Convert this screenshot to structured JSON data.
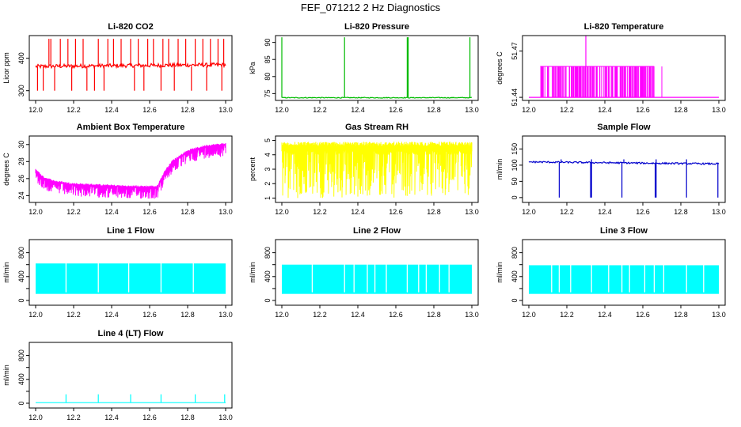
{
  "figure": {
    "title": "FEF_071212  2 Hz Diagnostics"
  },
  "chart_data": [
    {
      "id": "co2",
      "type": "line",
      "title": "Li-820 CO2",
      "ylabel": "Licor ppm",
      "color": "#ff0000",
      "xlim": [
        12.0,
        13.0
      ],
      "ylim": [
        270,
        470
      ],
      "yticks": [
        300,
        400
      ],
      "xticks": [
        "12.0",
        "12.2",
        "12.4",
        "12.6",
        "12.8",
        "13.0"
      ],
      "baseline": 375,
      "noise": 6,
      "base_note": "baseline drifts 375 to 380 ppm",
      "spikes_up": [
        12.07,
        12.08,
        12.13,
        12.17,
        12.21,
        12.25,
        12.33,
        12.38,
        12.41,
        12.45,
        12.5,
        12.54,
        12.59,
        12.62,
        12.67,
        12.7,
        12.75,
        12.79,
        12.84,
        12.88,
        12.92,
        12.96,
        12.99
      ],
      "spike_up_to": 460,
      "spikes_down": [
        12.01,
        12.04,
        12.1,
        12.19,
        12.27,
        12.31,
        12.36,
        12.52,
        12.57,
        12.66,
        12.73,
        12.82,
        12.9,
        12.98
      ],
      "spike_down_to": 300
    },
    {
      "id": "pressure",
      "type": "line",
      "title": "Li-820 Pressure",
      "ylabel": "kPa",
      "color": "#00bb00",
      "xlim": [
        12.0,
        13.0
      ],
      "ylim": [
        73,
        92
      ],
      "yticks": [
        75,
        80,
        85,
        90
      ],
      "xticks": [
        "12.0",
        "12.2",
        "12.4",
        "12.6",
        "12.8",
        "13.0"
      ],
      "baseline": 73.8,
      "noise": 0.12,
      "spikes_up": [
        12.0,
        12.33,
        12.66,
        12.665,
        12.99
      ],
      "spike_up_to": 91.5,
      "spikes_down": [],
      "spike_down_to": 73.8
    },
    {
      "id": "temperature",
      "type": "line",
      "title": "Li-820 Temperature",
      "ylabel": "degrees C",
      "color": "#ff00ff",
      "xlim": [
        12.0,
        13.0
      ],
      "ylim": [
        51.438,
        51.48
      ],
      "yticks": [
        51.44,
        51.47
      ],
      "xticks": [
        "12.0",
        "12.2",
        "12.4",
        "12.6",
        "12.8",
        "13.0"
      ],
      "baseline": 51.44,
      "noise": 0,
      "high": 51.46,
      "band_start": 12.06,
      "band_end": 12.66,
      "spikes_up": [
        12.3
      ],
      "spike_up_to": 51.48,
      "extra_lines": [
        12.7
      ],
      "spikes_down": [],
      "spike_down_to": 51.44
    },
    {
      "id": "boxtemp",
      "type": "line",
      "title": "Ambient Box Temperature",
      "ylabel": "degrees C",
      "color": "#ff00ff",
      "xlim": [
        12.0,
        13.0
      ],
      "ylim": [
        23.2,
        31
      ],
      "yticks": [
        24,
        26,
        28,
        30
      ],
      "xticks": [
        "12.0",
        "12.2",
        "12.4",
        "12.6",
        "12.8",
        "13.0"
      ],
      "profile": [
        [
          12.0,
          27.0
        ],
        [
          12.04,
          26.1
        ],
        [
          12.1,
          25.6
        ],
        [
          12.2,
          25.3
        ],
        [
          12.4,
          25.1
        ],
        [
          12.5,
          25.0
        ],
        [
          12.64,
          25.0
        ],
        [
          12.68,
          26.8
        ],
        [
          12.72,
          28.0
        ],
        [
          12.8,
          29.2
        ],
        [
          12.9,
          29.8
        ],
        [
          13.0,
          30.0
        ]
      ],
      "band_below": 1.4,
      "spikes_up": [],
      "spike_up_to": 0,
      "spikes_down": [],
      "spike_down_to": 0
    },
    {
      "id": "rh",
      "type": "line",
      "title": "Gas Stream RH",
      "ylabel": "percent",
      "color": "#ffff00",
      "xlim": [
        12.0,
        13.0
      ],
      "ylim": [
        0.7,
        5.3
      ],
      "yticks": [
        1,
        2,
        3,
        4,
        5
      ],
      "xticks": [
        "12.0",
        "12.2",
        "12.4",
        "12.6",
        "12.8",
        "13.0"
      ],
      "baseline": 4.75,
      "noise": 0.15,
      "dip_to": 1.0,
      "dip_density": 0.55,
      "spikes_up": [],
      "spike_up_to": 0,
      "spikes_down": [],
      "spike_down_to": 0
    },
    {
      "id": "sampleflow",
      "type": "line",
      "title": "Sample Flow",
      "ylabel": "ml/min",
      "color": "#0000cc",
      "xlim": [
        12.0,
        13.0
      ],
      "ylim": [
        -15,
        190
      ],
      "yticks": [
        0,
        50,
        100,
        150
      ],
      "xticks": [
        "12.0",
        "12.2",
        "12.4",
        "12.6",
        "12.8",
        "13.0"
      ],
      "baseline": 108,
      "noise": 2.5,
      "base_note": "drifts 110 to 104",
      "spikes_up": [
        12.17,
        12.33,
        12.5,
        12.67,
        12.83
      ],
      "spike_up_to": 118,
      "spikes_down": [
        12.16,
        12.325,
        12.33,
        12.49,
        12.665,
        12.67,
        12.83,
        12.995
      ],
      "spike_down_to": 0
    },
    {
      "id": "line1",
      "type": "line",
      "title": "Line 1 Flow",
      "ylabel": "ml/min",
      "color": "#00ffff",
      "xlim": [
        12.0,
        13.0
      ],
      "ylim": [
        -80,
        1020
      ],
      "yticks": [
        0,
        400,
        800
      ],
      "ytick_extra": [
        200,
        600
      ],
      "xticks": [
        "12.0",
        "12.2",
        "12.4",
        "12.6",
        "12.8",
        "13.0"
      ],
      "low": 110,
      "high": 620,
      "gaps": [
        12.16,
        12.33,
        12.49,
        12.66,
        12.83
      ],
      "spikes_up": [],
      "spike_up_to": 0,
      "spikes_down": [],
      "spike_down_to": 0
    },
    {
      "id": "line2",
      "type": "line",
      "title": "Line 2 Flow",
      "ylabel": "ml/min",
      "color": "#00ffff",
      "xlim": [
        12.0,
        13.0
      ],
      "ylim": [
        -80,
        1020
      ],
      "yticks": [
        0,
        400,
        800
      ],
      "ytick_extra": [
        200,
        600
      ],
      "xticks": [
        "12.0",
        "12.2",
        "12.4",
        "12.6",
        "12.8",
        "13.0"
      ],
      "low": 110,
      "high": 600,
      "gaps": [
        12.16,
        12.33,
        12.38,
        12.45,
        12.49,
        12.55,
        12.66,
        12.72,
        12.76,
        12.83,
        12.88
      ],
      "spikes_up": [],
      "spike_up_to": 0,
      "spikes_down": [],
      "spike_down_to": 0
    },
    {
      "id": "line3",
      "type": "line",
      "title": "Line 3 Flow",
      "ylabel": "ml/min",
      "color": "#00ffff",
      "xlim": [
        12.0,
        13.0
      ],
      "ylim": [
        -80,
        1020
      ],
      "yticks": [
        0,
        400,
        800
      ],
      "ytick_extra": [
        200,
        600
      ],
      "xticks": [
        "12.0",
        "12.2",
        "12.4",
        "12.6",
        "12.8",
        "13.0"
      ],
      "low": 110,
      "high": 590,
      "gaps": [
        12.12,
        12.16,
        12.22,
        12.33,
        12.42,
        12.49,
        12.53,
        12.61,
        12.66,
        12.71,
        12.83,
        12.92
      ],
      "spikes_up": [],
      "spike_up_to": 0,
      "spikes_down": [],
      "spike_down_to": 0
    },
    {
      "id": "line4",
      "type": "line",
      "title": "Line 4 (LT) Flow",
      "ylabel": "ml/min",
      "color": "#00ffff",
      "xlim": [
        12.0,
        13.0
      ],
      "ylim": [
        -80,
        1020
      ],
      "yticks": [
        0,
        400,
        800
      ],
      "ytick_extra": [
        200,
        600
      ],
      "xticks": [
        "12.0",
        "12.2",
        "12.4",
        "12.6",
        "12.8",
        "13.0"
      ],
      "baseline": 10,
      "noise": 0,
      "spikes_up": [
        12.16,
        12.33,
        12.5,
        12.66,
        12.84,
        12.995
      ],
      "spike_up_to": 150,
      "spikes_down": [],
      "spike_down_to": 10
    }
  ]
}
